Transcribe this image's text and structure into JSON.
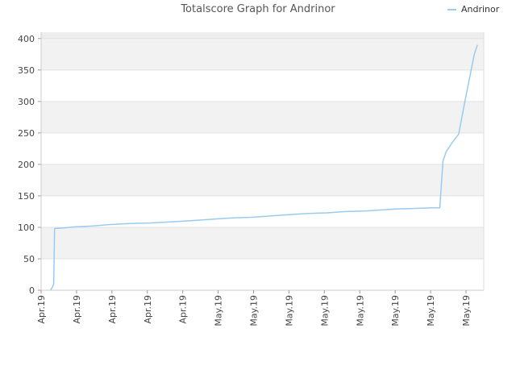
{
  "chart_data": {
    "type": "line",
    "title": "Totalscore Graph for Andrinor",
    "xlabel": "",
    "ylabel": "",
    "ylim": [
      0,
      410
    ],
    "yticks": [
      0,
      50,
      100,
      150,
      200,
      250,
      300,
      350,
      400
    ],
    "x_tick_labels": [
      "Apr.19",
      "Apr.19",
      "Apr.19",
      "Apr.19",
      "Apr.19",
      "May.19",
      "May.19",
      "May.19",
      "May.19",
      "May.19",
      "May.19",
      "May.19",
      "May.19"
    ],
    "grid": true,
    "legend": "top-right",
    "series": [
      {
        "name": "Andrinor",
        "color": "#99ccee",
        "x": [
          0,
          0.8,
          1,
          1.3,
          4,
          8,
          13,
          18,
          25,
          32,
          40,
          46,
          52,
          58,
          64,
          70,
          76,
          82,
          88,
          94,
          100,
          110,
          116,
          122,
          124,
          125,
          126,
          128,
          130,
          132,
          134,
          135,
          136
        ],
        "values": [
          0,
          7,
          10,
          98,
          99,
          101,
          102,
          104,
          106,
          107,
          109,
          111,
          113,
          115,
          116,
          118,
          120,
          122,
          123,
          125,
          126,
          129,
          130,
          131,
          131,
          205,
          220,
          235,
          248,
          300,
          350,
          375,
          390
        ]
      }
    ]
  }
}
